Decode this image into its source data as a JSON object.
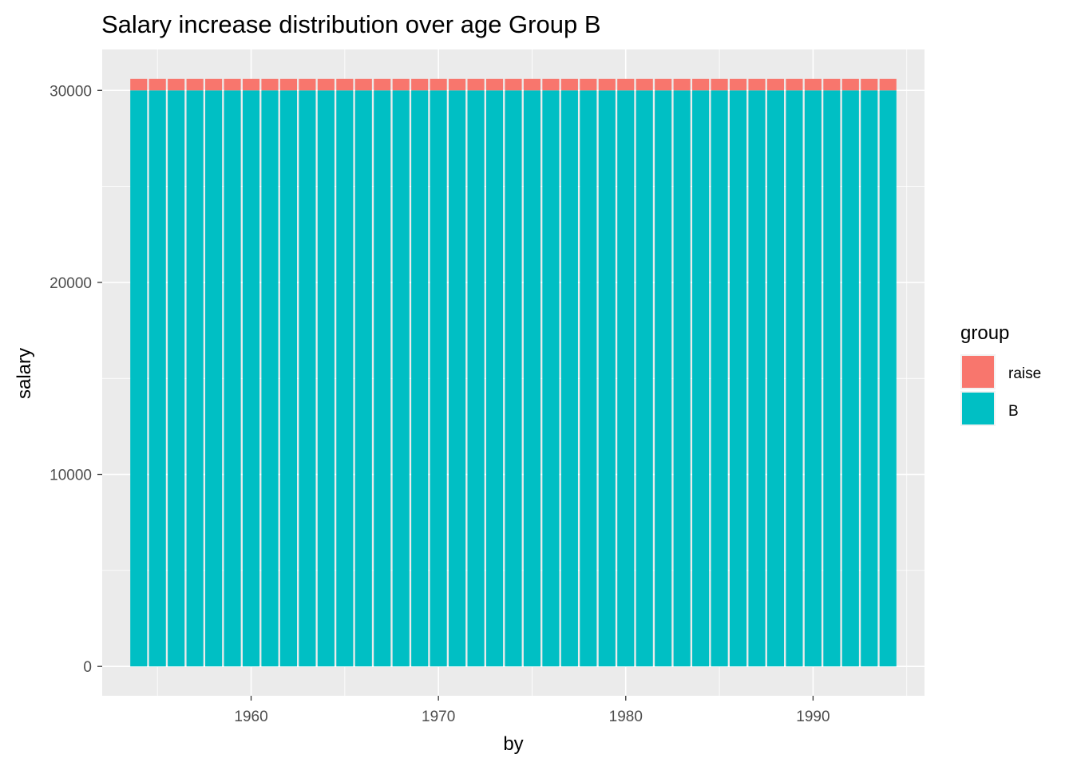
{
  "chart_data": {
    "type": "bar",
    "stacked": true,
    "title": "Salary increase distribution over age Group B",
    "xlabel": "by",
    "ylabel": "salary",
    "x": [
      1954,
      1955,
      1956,
      1957,
      1958,
      1959,
      1960,
      1961,
      1962,
      1963,
      1964,
      1965,
      1966,
      1967,
      1968,
      1969,
      1970,
      1971,
      1972,
      1973,
      1974,
      1975,
      1976,
      1977,
      1978,
      1979,
      1980,
      1981,
      1982,
      1983,
      1984,
      1985,
      1986,
      1987,
      1988,
      1989,
      1990,
      1991,
      1992,
      1993,
      1994
    ],
    "series": [
      {
        "name": "B",
        "color": "#00BFC4",
        "values": [
          30000,
          30000,
          30000,
          30000,
          30000,
          30000,
          30000,
          30000,
          30000,
          30000,
          30000,
          30000,
          30000,
          30000,
          30000,
          30000,
          30000,
          30000,
          30000,
          30000,
          30000,
          30000,
          30000,
          30000,
          30000,
          30000,
          30000,
          30000,
          30000,
          30000,
          30000,
          30000,
          30000,
          30000,
          30000,
          30000,
          30000,
          30000,
          30000,
          30000,
          30000
        ]
      },
      {
        "name": "raise",
        "color": "#F8766D",
        "values": [
          600,
          600,
          600,
          600,
          600,
          600,
          600,
          600,
          600,
          600,
          600,
          600,
          600,
          600,
          600,
          600,
          600,
          600,
          600,
          600,
          600,
          600,
          600,
          600,
          600,
          600,
          600,
          600,
          600,
          600,
          600,
          600,
          600,
          600,
          600,
          600,
          600,
          600,
          600,
          600,
          600
        ]
      }
    ],
    "xlim": [
      1952.05,
      1995.95
    ],
    "ylim": [
      -1530,
      32130
    ],
    "xticks": [
      1960,
      1970,
      1980,
      1990
    ],
    "xtick_labels": [
      "1960",
      "1970",
      "1980",
      "1990"
    ],
    "yticks": [
      0,
      10000,
      20000,
      30000
    ],
    "ytick_labels": [
      "0",
      "10000",
      "20000",
      "30000"
    ],
    "grid": true,
    "legend": {
      "title": "group",
      "position": "right",
      "entries": [
        {
          "label": "raise",
          "color": "#F8766D"
        },
        {
          "label": "B",
          "color": "#00BFC4"
        }
      ]
    }
  }
}
